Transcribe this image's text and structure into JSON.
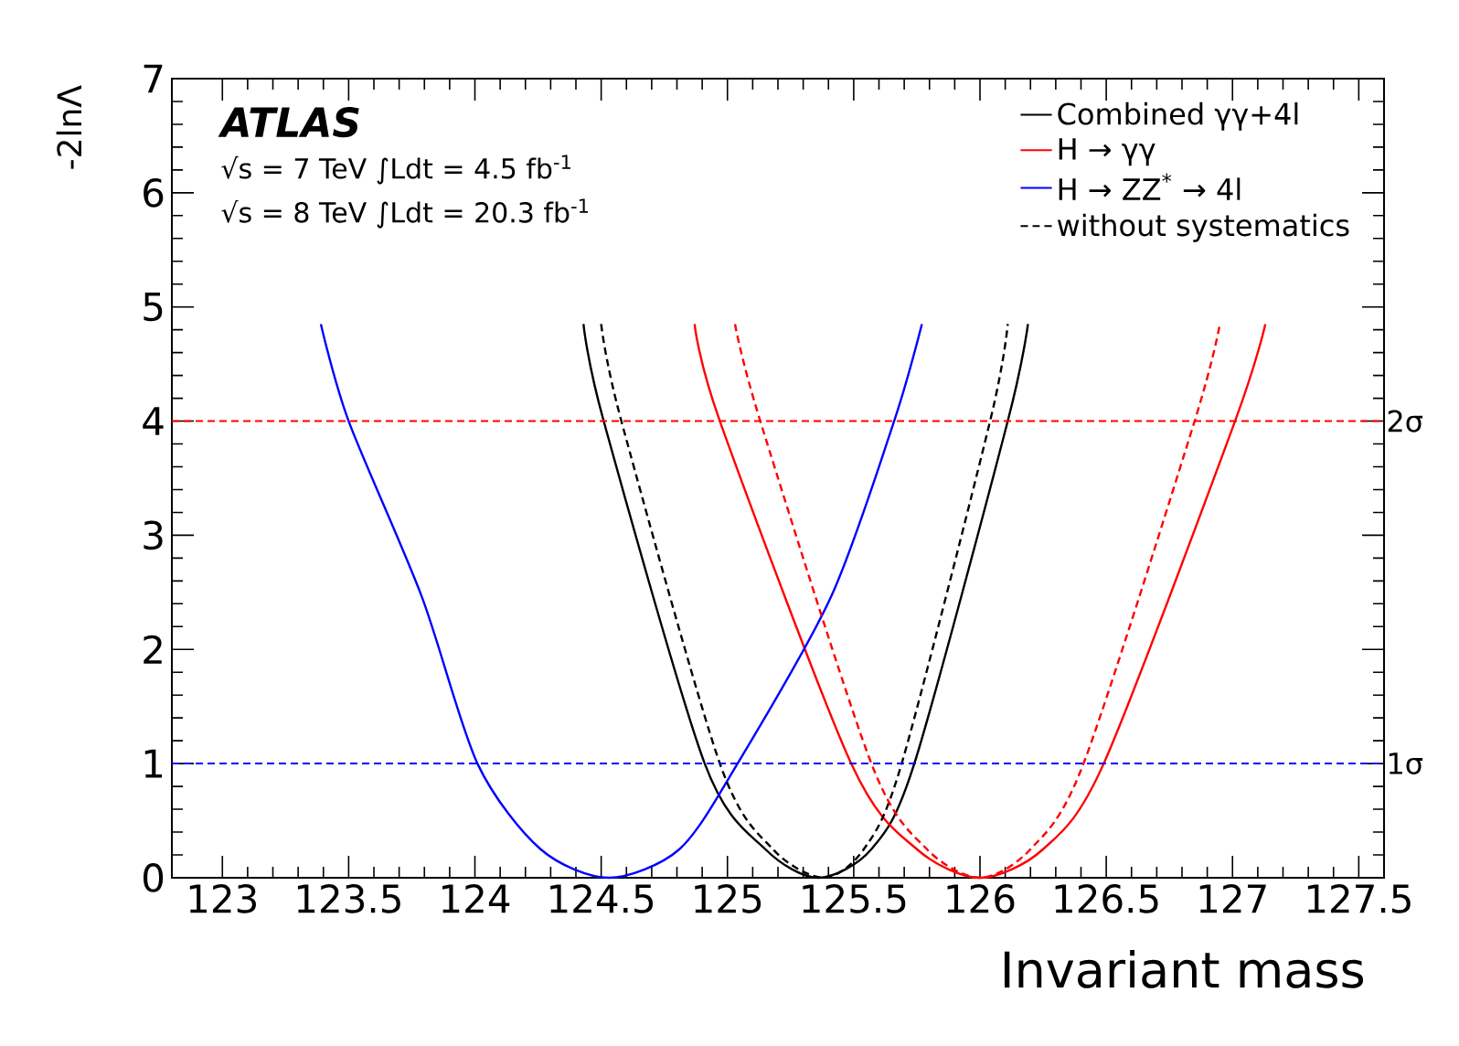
{
  "chart_data": {
    "type": "line",
    "xlabel": "Invariant mass",
    "ylabel": "-2lnΛ",
    "xlim": [
      122.8,
      127.6
    ],
    "ylim": [
      0,
      7
    ],
    "xticks": [
      123,
      123.5,
      124,
      124.5,
      125,
      125.5,
      126,
      126.5,
      127,
      127.5
    ],
    "yticks": [
      0,
      1,
      2,
      3,
      4,
      5,
      6,
      7
    ],
    "series": [
      {
        "name": "Combined γγ+4l",
        "color": "#000000",
        "line_style": "solid",
        "x": [
          124.43,
          124.51,
          124.91,
          125.15,
          125.36,
          125.57,
          125.74,
          126.11,
          126.19
        ],
        "values": [
          4.85,
          4,
          1,
          0.25,
          0,
          0.25,
          1,
          4,
          4.85
        ]
      },
      {
        "name": "H → γγ",
        "color": "#ff0000",
        "line_style": "solid",
        "x": [
          124.87,
          124.97,
          125.49,
          125.75,
          126.0,
          126.25,
          126.49,
          127.01,
          127.13
        ],
        "values": [
          4.85,
          4,
          1,
          0.25,
          0,
          0.25,
          1,
          4,
          4.85
        ]
      },
      {
        "name": "H → ZZ$^{*}$ → 4l",
        "color": "#0000ff",
        "line_style": "solid",
        "x": [
          123.39,
          123.5,
          123.79,
          124.01,
          124.26,
          124.53,
          124.81,
          125.04,
          125.41,
          125.66,
          125.77
        ],
        "values": [
          4.85,
          4,
          2.46,
          1,
          0.25,
          0,
          0.25,
          1,
          2.46,
          4,
          4.85
        ]
      },
      {
        "name": "without systematics",
        "color": "#000000",
        "line_style": "dashed",
        "x": [
          124.5,
          124.58,
          124.97,
          125.18,
          125.38,
          125.54,
          125.69,
          126.04,
          126.11
        ],
        "values": [
          4.85,
          4,
          1,
          0.25,
          0,
          0.25,
          1,
          4,
          4.85
        ]
      },
      {
        "color": "#ff0000",
        "line_style": "dashed",
        "x": [
          125.03,
          125.13,
          125.57,
          125.79,
          126.0,
          126.2,
          126.41,
          126.85,
          126.95
        ],
        "values": [
          4.85,
          4,
          1,
          0.25,
          0,
          0.25,
          1,
          4,
          4.85
        ]
      }
    ],
    "ref_lines": [
      {
        "axis": "y",
        "value": 4,
        "label": "2σ",
        "color": "#ff0000",
        "line_style": "dashed"
      },
      {
        "axis": "y",
        "value": 1,
        "label": "1σ",
        "color": "#0000ff",
        "line_style": "dashed"
      }
    ],
    "annotations": [
      "ATLAS",
      "√s = 7 TeV ∫Ldt = 4.5 fb$^{-1}$",
      "√s = 8 TeV ∫Ldt = 20.3 fb$^{-1}$"
    ],
    "legend": "top right",
    "grid": false,
    "marker": "none"
  }
}
